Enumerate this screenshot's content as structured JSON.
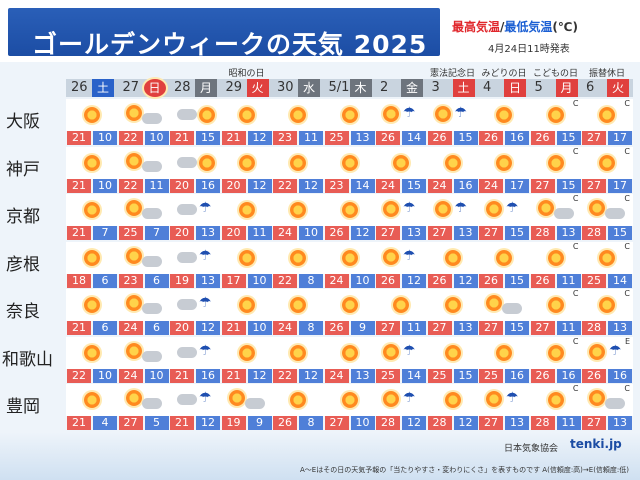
{
  "title": "ゴールデンウィークの天気 2025",
  "legend": {
    "hi": "最高気温",
    "sep": "/",
    "lo": "最低気温",
    "unit": "(℃)"
  },
  "issued": "4月24日11時発表",
  "days": [
    {
      "date": "26",
      "weekday": "土",
      "type": "sat",
      "holiday": ""
    },
    {
      "date": "27",
      "weekday": "日",
      "type": "sun",
      "holiday": ""
    },
    {
      "date": "28",
      "weekday": "月",
      "type": "wk",
      "holiday": ""
    },
    {
      "date": "29",
      "weekday": "火",
      "type": "hol2",
      "holiday": "昭和の日"
    },
    {
      "date": "30",
      "weekday": "水",
      "type": "wk",
      "holiday": ""
    },
    {
      "date": "5/1",
      "weekday": "木",
      "type": "wk",
      "holiday": ""
    },
    {
      "date": "2",
      "weekday": "金",
      "type": "wk",
      "holiday": ""
    },
    {
      "date": "3",
      "weekday": "土",
      "type": "hol2",
      "holiday": "憲法記念日"
    },
    {
      "date": "4",
      "weekday": "日",
      "type": "hol2",
      "holiday": "みどりの日"
    },
    {
      "date": "5",
      "weekday": "月",
      "type": "hol2",
      "holiday": "こどもの日"
    },
    {
      "date": "6",
      "weekday": "火",
      "type": "hol2",
      "holiday": "振替休日"
    }
  ],
  "cities": [
    {
      "name": "大阪",
      "hi": [
        "21",
        "22",
        "21",
        "21",
        "23",
        "25",
        "26",
        "26",
        "26",
        "26",
        "27"
      ],
      "lo": [
        "10",
        "10",
        "15",
        "12",
        "11",
        "13",
        "14",
        "15",
        "16",
        "15",
        "17"
      ],
      "weather": [
        "s",
        "sc",
        "c",
        "s",
        "s",
        "s",
        "sr",
        "sr",
        "s",
        "s",
        "s"
      ],
      "abc": [
        "",
        "",
        "",
        "",
        "",
        "",
        "",
        "",
        "",
        "C",
        "C"
      ]
    },
    {
      "name": "神戸",
      "hi": [
        "21",
        "22",
        "20",
        "20",
        "22",
        "23",
        "24",
        "24",
        "24",
        "27",
        "27"
      ],
      "lo": [
        "10",
        "11",
        "16",
        "12",
        "12",
        "14",
        "15",
        "16",
        "17",
        "15",
        "17"
      ],
      "weather": [
        "s",
        "sc",
        "c",
        "s",
        "s",
        "s",
        "s",
        "s",
        "s",
        "s",
        "s"
      ],
      "abc": [
        "",
        "",
        "",
        "",
        "",
        "",
        "",
        "",
        "",
        "C",
        "C"
      ]
    },
    {
      "name": "京都",
      "hi": [
        "21",
        "25",
        "20",
        "20",
        "24",
        "26",
        "27",
        "27",
        "27",
        "28",
        "28"
      ],
      "lo": [
        "7",
        "7",
        "13",
        "11",
        "10",
        "12",
        "13",
        "13",
        "15",
        "13",
        "15"
      ],
      "weather": [
        "s",
        "sc",
        "cr",
        "s",
        "s",
        "s",
        "sr",
        "sr",
        "sr",
        "sc",
        "sc"
      ],
      "abc": [
        "",
        "",
        "",
        "",
        "",
        "",
        "",
        "",
        "",
        "C",
        "C"
      ]
    },
    {
      "name": "彦根",
      "hi": [
        "18",
        "23",
        "19",
        "17",
        "22",
        "24",
        "26",
        "26",
        "26",
        "26",
        "25"
      ],
      "lo": [
        "6",
        "6",
        "13",
        "10",
        "8",
        "10",
        "12",
        "12",
        "15",
        "11",
        "14"
      ],
      "weather": [
        "s",
        "sc",
        "cr",
        "s",
        "s",
        "s",
        "sr",
        "s",
        "s",
        "s",
        "s"
      ],
      "abc": [
        "",
        "",
        "",
        "",
        "",
        "",
        "",
        "",
        "",
        "C",
        "C"
      ]
    },
    {
      "name": "奈良",
      "hi": [
        "21",
        "24",
        "20",
        "21",
        "24",
        "26",
        "27",
        "27",
        "27",
        "27",
        "28"
      ],
      "lo": [
        "6",
        "6",
        "12",
        "10",
        "8",
        "9",
        "11",
        "13",
        "15",
        "11",
        "13"
      ],
      "weather": [
        "s",
        "sc",
        "cr",
        "s",
        "s",
        "s",
        "s",
        "s",
        "sc",
        "s",
        "s"
      ],
      "abc": [
        "",
        "",
        "",
        "",
        "",
        "",
        "",
        "",
        "",
        "C",
        "C"
      ]
    },
    {
      "name": "和歌山",
      "hi": [
        "22",
        "24",
        "21",
        "21",
        "22",
        "24",
        "25",
        "25",
        "25",
        "26",
        "26"
      ],
      "lo": [
        "10",
        "10",
        "16",
        "12",
        "12",
        "13",
        "14",
        "15",
        "16",
        "16",
        "16"
      ],
      "weather": [
        "s",
        "sc",
        "cr",
        "s",
        "s",
        "s",
        "sr",
        "s",
        "s",
        "s",
        "sr"
      ],
      "abc": [
        "",
        "",
        "",
        "",
        "",
        "",
        "",
        "",
        "",
        "C",
        "E"
      ]
    },
    {
      "name": "豊岡",
      "hi": [
        "21",
        "27",
        "21",
        "19",
        "26",
        "27",
        "28",
        "28",
        "27",
        "28",
        "27"
      ],
      "lo": [
        "4",
        "5",
        "12",
        "9",
        "8",
        "10",
        "12",
        "12",
        "13",
        "11",
        "13"
      ],
      "weather": [
        "s",
        "sc",
        "cr",
        "sc",
        "s",
        "s",
        "sr",
        "s",
        "sr",
        "s",
        "sc"
      ],
      "abc": [
        "",
        "",
        "",
        "",
        "",
        "",
        "",
        "",
        "",
        "C",
        "C"
      ]
    }
  ],
  "footer": {
    "jwa": "日本気象協会",
    "logo": "tenki.jp",
    "note": "A～Eはその日の天気予報の「当たりやすさ・変わりにくさ」を表すものです A(信頼度:高)→E(信頼度:低)"
  }
}
